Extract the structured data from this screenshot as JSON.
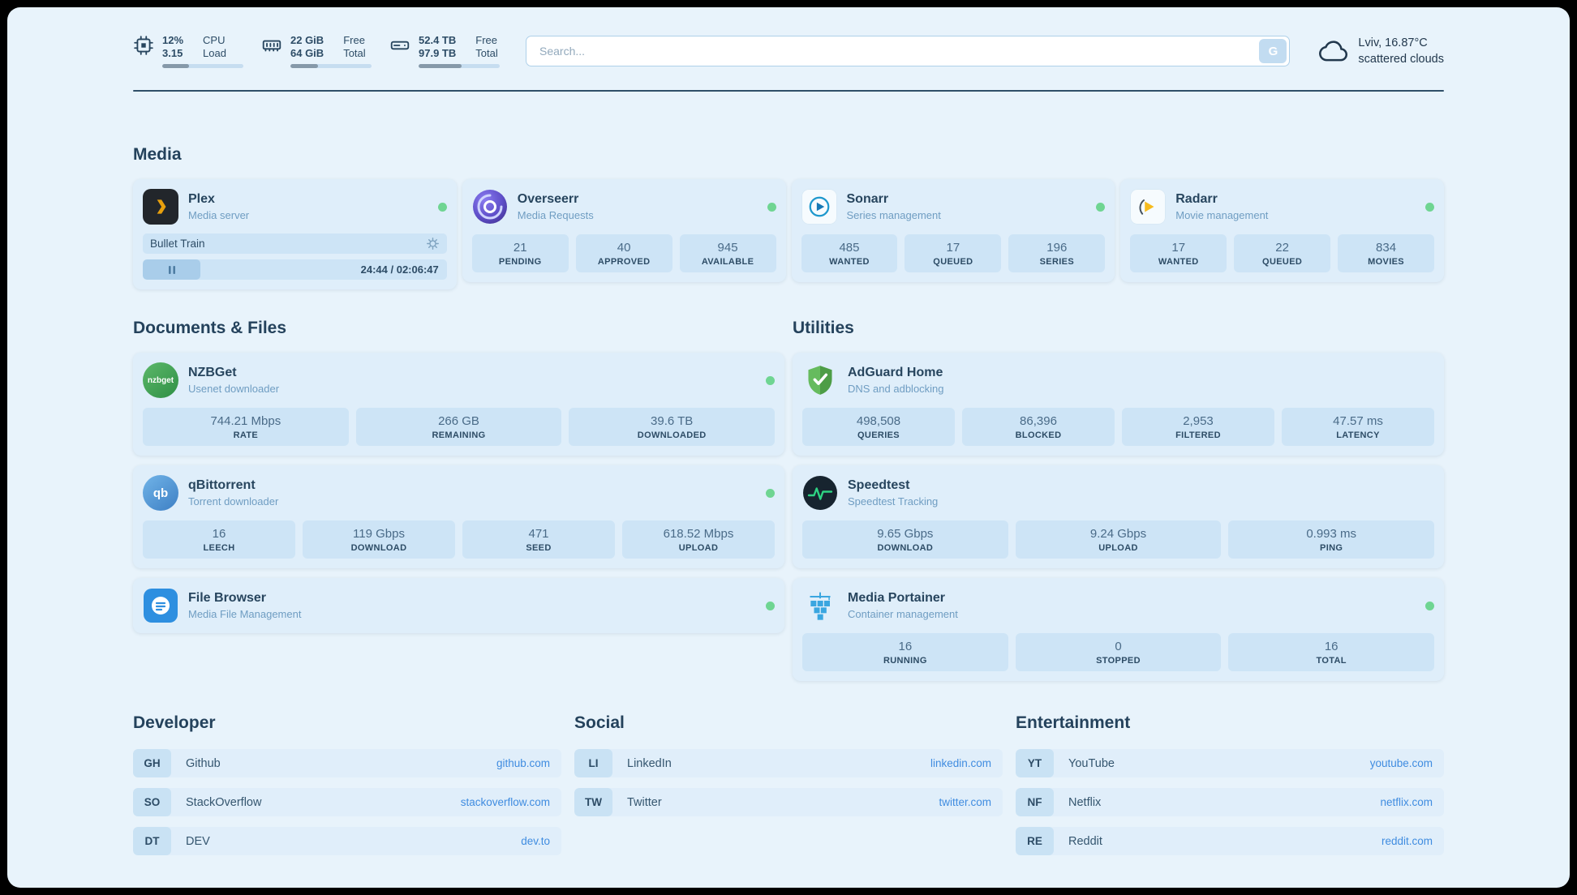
{
  "colors": {
    "background": "#e8f3fb",
    "card": "#dfeefa",
    "tile": "#cde4f6",
    "text_primary": "#27455e",
    "text_muted": "#6f9dc2",
    "link": "#3f8ce0",
    "status_online": "#6fd592",
    "plex_amber": "#e8a00d",
    "radarr_yellow": "#f6bb1d",
    "sonarr_blue": "#1e98cd",
    "adguard_green": "#57a84f",
    "speedtest_green": "#2ed383",
    "portainer_blue": "#3aa6e0",
    "nzbget_green": "#3f9e4f",
    "qbittorrent_blue": "#4a90d9",
    "filebrowser_blue": "#2e8fe0"
  },
  "header": {
    "system_widgets": [
      {
        "icon": "cpu-icon",
        "values": [
          "12%",
          "3.15"
        ],
        "labels": [
          "CPU",
          "Load"
        ],
        "progress_pct": 33
      },
      {
        "icon": "ram-icon",
        "values": [
          "22 GiB",
          "64 GiB"
        ],
        "labels": [
          "Free",
          "Total"
        ],
        "progress_pct": 34
      },
      {
        "icon": "disk-icon",
        "values": [
          "52.4 TB",
          "97.9 TB"
        ],
        "labels": [
          "Free",
          "Total"
        ],
        "progress_pct": 53
      }
    ],
    "search": {
      "placeholder": "Search...",
      "button_label": "G"
    },
    "weather": {
      "location": "Lviv, 16.87°C",
      "condition": "scattered clouds"
    }
  },
  "media": {
    "title": "Media",
    "plex": {
      "name": "Plex",
      "subtitle": "Media server",
      "online": true,
      "player": {
        "track_title": "Bullet Train",
        "time_display": "24:44 / 02:06:47",
        "progress_pct": 19
      }
    },
    "overseerr": {
      "name": "Overseerr",
      "subtitle": "Media Requests",
      "online": true,
      "stats": [
        {
          "value": "21",
          "label": "PENDING"
        },
        {
          "value": "40",
          "label": "APPROVED"
        },
        {
          "value": "945",
          "label": "AVAILABLE"
        }
      ]
    },
    "sonarr": {
      "name": "Sonarr",
      "subtitle": "Series management",
      "online": true,
      "stats": [
        {
          "value": "485",
          "label": "WANTED"
        },
        {
          "value": "17",
          "label": "QUEUED"
        },
        {
          "value": "196",
          "label": "SERIES"
        }
      ]
    },
    "radarr": {
      "name": "Radarr",
      "subtitle": "Movie management",
      "online": true,
      "stats": [
        {
          "value": "17",
          "label": "WANTED"
        },
        {
          "value": "22",
          "label": "QUEUED"
        },
        {
          "value": "834",
          "label": "MOVIES"
        }
      ]
    }
  },
  "documents": {
    "title": "Documents & Files",
    "nzbget": {
      "name": "NZBGet",
      "subtitle": "Usenet downloader",
      "online": true,
      "icon_text": "nzbget",
      "stats": [
        {
          "value": "744.21 Mbps",
          "label": "RATE"
        },
        {
          "value": "266 GB",
          "label": "REMAINING"
        },
        {
          "value": "39.6 TB",
          "label": "DOWNLOADED"
        }
      ]
    },
    "qbittorrent": {
      "name": "qBittorrent",
      "subtitle": "Torrent downloader",
      "online": true,
      "icon_text": "qb",
      "stats": [
        {
          "value": "16",
          "label": "LEECH"
        },
        {
          "value": "119 Gbps",
          "label": "DOWNLOAD"
        },
        {
          "value": "471",
          "label": "SEED"
        },
        {
          "value": "618.52 Mbps",
          "label": "UPLOAD"
        }
      ]
    },
    "filebrowser": {
      "name": "File Browser",
      "subtitle": "Media File Management",
      "online": true
    }
  },
  "utilities": {
    "title": "Utilities",
    "adguard": {
      "name": "AdGuard Home",
      "subtitle": "DNS and adblocking",
      "online": false,
      "stats": [
        {
          "value": "498,508",
          "label": "QUERIES"
        },
        {
          "value": "86,396",
          "label": "BLOCKED"
        },
        {
          "value": "2,953",
          "label": "FILTERED"
        },
        {
          "value": "47.57 ms",
          "label": "LATENCY"
        }
      ]
    },
    "speedtest": {
      "name": "Speedtest",
      "subtitle": "Speedtest Tracking",
      "online": false,
      "stats": [
        {
          "value": "9.65 Gbps",
          "label": "DOWNLOAD"
        },
        {
          "value": "9.24 Gbps",
          "label": "UPLOAD"
        },
        {
          "value": "0.993 ms",
          "label": "PING"
        }
      ]
    },
    "portainer": {
      "name": "Media Portainer",
      "subtitle": "Container management",
      "online": true,
      "stats": [
        {
          "value": "16",
          "label": "RUNNING"
        },
        {
          "value": "0",
          "label": "STOPPED"
        },
        {
          "value": "16",
          "label": "TOTAL"
        }
      ]
    }
  },
  "bookmarks": {
    "developer": {
      "title": "Developer",
      "items": [
        {
          "abbr": "GH",
          "name": "Github",
          "url": "github.com"
        },
        {
          "abbr": "SO",
          "name": "StackOverflow",
          "url": "stackoverflow.com"
        },
        {
          "abbr": "DT",
          "name": "DEV",
          "url": "dev.to"
        }
      ]
    },
    "social": {
      "title": "Social",
      "items": [
        {
          "abbr": "LI",
          "name": "LinkedIn",
          "url": "linkedin.com"
        },
        {
          "abbr": "TW",
          "name": "Twitter",
          "url": "twitter.com"
        }
      ]
    },
    "entertainment": {
      "title": "Entertainment",
      "items": [
        {
          "abbr": "YT",
          "name": "YouTube",
          "url": "youtube.com"
        },
        {
          "abbr": "NF",
          "name": "Netflix",
          "url": "netflix.com"
        },
        {
          "abbr": "RE",
          "name": "Reddit",
          "url": "reddit.com"
        }
      ]
    }
  }
}
